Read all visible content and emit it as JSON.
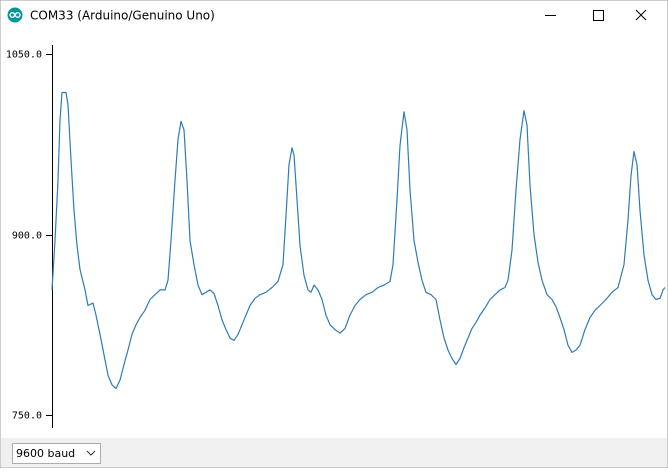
{
  "window": {
    "title": "COM33 (Arduino/Genuino Uno)"
  },
  "baud_select": {
    "value": "9600 baud"
  },
  "chart_data": {
    "type": "line",
    "x": [
      0,
      3,
      6,
      8,
      10,
      14,
      16,
      19,
      22,
      25,
      28,
      33,
      36,
      41,
      44,
      48,
      52,
      56,
      60,
      64,
      68,
      72,
      76,
      80,
      84,
      88,
      93,
      98,
      103,
      108,
      113,
      116,
      119,
      123,
      126,
      129,
      132,
      135,
      138,
      142,
      146,
      150,
      154,
      158,
      162,
      166,
      170,
      174,
      178,
      182,
      186,
      190,
      194,
      198,
      203,
      208,
      214,
      220,
      226,
      231,
      234,
      237,
      240,
      242,
      245,
      248,
      252,
      256,
      259,
      262,
      266,
      270,
      274,
      278,
      283,
      288,
      293,
      298,
      303,
      308,
      314,
      320,
      326,
      332,
      338,
      341,
      345,
      348,
      352,
      355,
      358,
      362,
      366,
      370,
      374,
      379,
      384,
      388,
      392,
      396,
      400,
      404,
      408,
      412,
      416,
      420,
      424,
      428,
      433,
      438,
      443,
      448,
      453,
      456,
      460,
      464,
      468,
      472,
      475,
      478,
      482,
      486,
      490,
      495,
      500,
      504,
      508,
      512,
      516,
      520,
      524,
      528,
      533,
      538,
      543,
      548,
      554,
      560,
      566,
      572,
      576,
      579,
      582,
      585,
      588,
      592,
      596,
      600,
      604,
      608,
      611,
      613
    ],
    "series": [
      {
        "color": "#2e7bb6",
        "values": [
          854,
          895,
          945,
          995,
          1018,
          1018,
          1008,
          962,
          920,
          891,
          871,
          854,
          841,
          843,
          833,
          817,
          800,
          783,
          775,
          772,
          779,
          792,
          804,
          817,
          825,
          831,
          837,
          846,
          850,
          854,
          854,
          862,
          895,
          945,
          979,
          994,
          987,
          945,
          895,
          875,
          858,
          850,
          852,
          854,
          851,
          841,
          829,
          821,
          814,
          812,
          817,
          825,
          833,
          841,
          847,
          850,
          852,
          856,
          861,
          875,
          916,
          958,
          972,
          966,
          929,
          891,
          866,
          854,
          852,
          858,
          854,
          846,
          833,
          825,
          821,
          818,
          822,
          833,
          841,
          846,
          850,
          852,
          856,
          858,
          861,
          875,
          929,
          974,
          1002,
          987,
          937,
          895,
          877,
          862,
          852,
          850,
          846,
          829,
          814,
          804,
          797,
          792,
          797,
          806,
          814,
          822,
          827,
          833,
          839,
          846,
          850,
          854,
          856,
          862,
          887,
          937,
          979,
          1003,
          991,
          941,
          900,
          877,
          862,
          850,
          846,
          840,
          831,
          821,
          808,
          802,
          804,
          808,
          821,
          831,
          837,
          841,
          846,
          852,
          856,
          875,
          912,
          949,
          969,
          958,
          920,
          883,
          862,
          850,
          846,
          847,
          854,
          856
        ]
      }
    ],
    "xlim": [
      0,
      613
    ],
    "ylim": [
      739.2,
      1057.5
    ],
    "yticks": [
      {
        "value": 750,
        "label": "750.0"
      },
      {
        "value": 900,
        "label": "900.0"
      },
      {
        "value": 1050,
        "label": "1050.0"
      }
    ]
  }
}
